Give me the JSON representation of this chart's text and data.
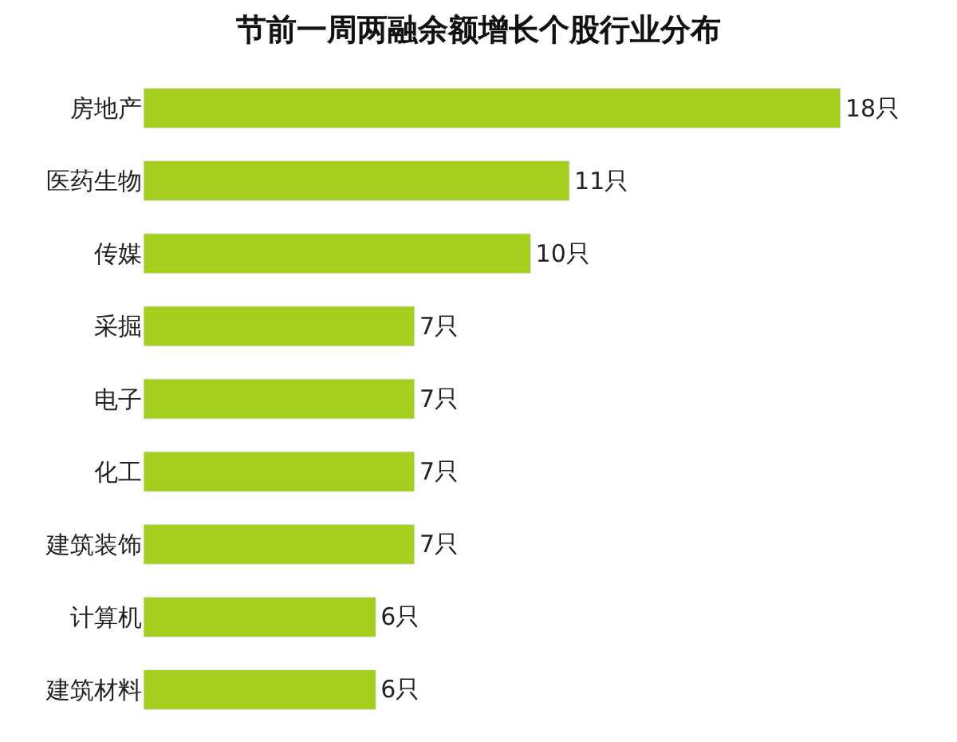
{
  "chart_data": {
    "type": "bar",
    "orientation": "horizontal",
    "title": "节前一周两融余额增长个股行业分布",
    "categories": [
      "房地产",
      "医药生物",
      "传媒",
      "采掘",
      "电子",
      "化工",
      "建筑装饰",
      "计算机",
      "建筑材料"
    ],
    "values": [
      18,
      11,
      10,
      7,
      7,
      7,
      7,
      6,
      6
    ],
    "value_labels": [
      "18只",
      "11只",
      "10只",
      "7只",
      "7只",
      "7只",
      "7只",
      "6只",
      "6只"
    ],
    "color": "#a5cf1f",
    "legend": false,
    "tick_labels": "y"
  }
}
